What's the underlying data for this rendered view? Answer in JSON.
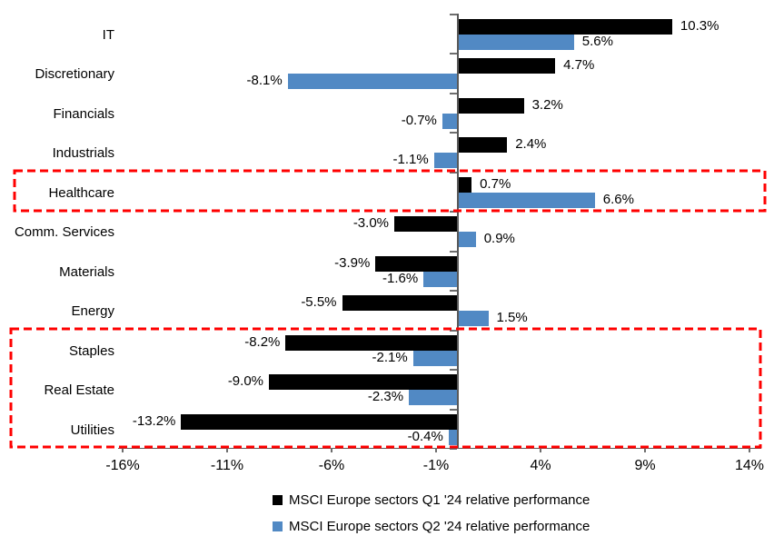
{
  "chart_data": {
    "type": "bar",
    "orientation": "horizontal",
    "title": "",
    "categories": [
      "IT",
      "Discretionary",
      "Financials",
      "Industrials",
      "Healthcare",
      "Comm. Services",
      "Materials",
      "Energy",
      "Staples",
      "Real Estate",
      "Utilities"
    ],
    "series": [
      {
        "name": "MSCI Europe sectors Q1 '24 relative performance",
        "color": "#000000",
        "values": [
          10.3,
          4.7,
          3.2,
          2.4,
          0.7,
          -3.0,
          -3.9,
          -5.5,
          -8.2,
          -9.0,
          -13.2
        ],
        "value_labels": [
          "10.3%",
          "4.7%",
          "3.2%",
          "2.4%",
          "0.7%",
          "-3.0%",
          "-3.9%",
          "-5.5%",
          "-8.2%",
          "-9.0%",
          "-13.2%"
        ]
      },
      {
        "name": "MSCI Europe sectors Q2 '24 relative performance",
        "color": "#5189C4",
        "values": [
          5.6,
          -8.1,
          -0.7,
          -1.1,
          6.6,
          0.9,
          -1.6,
          1.5,
          -2.1,
          -2.3,
          -0.4
        ],
        "value_labels": [
          "5.6%",
          "-8.1%",
          "-0.7%",
          "-1.1%",
          "6.6%",
          "0.9%",
          "-1.6%",
          "1.5%",
          "-2.1%",
          "-2.3%",
          "-0.4%"
        ]
      }
    ],
    "x_tick_values": [
      -16,
      -11,
      -6,
      -1,
      4,
      9,
      14
    ],
    "x_tick_labels": [
      "-16%",
      "-11%",
      "-6%",
      "-1%",
      "4%",
      "9%",
      "14%"
    ],
    "xlim": [
      -16,
      14
    ],
    "xlabel": "",
    "ylabel": "",
    "grid": false,
    "legend_position": "bottom",
    "highlight_color": "#FF0000",
    "highlights": [
      {
        "label": "healthcare-highlight",
        "categories": [
          "Healthcare"
        ]
      },
      {
        "label": "defensives-highlight",
        "categories": [
          "Staples",
          "Real Estate",
          "Utilities"
        ]
      }
    ],
    "axis_color": "#595959"
  }
}
